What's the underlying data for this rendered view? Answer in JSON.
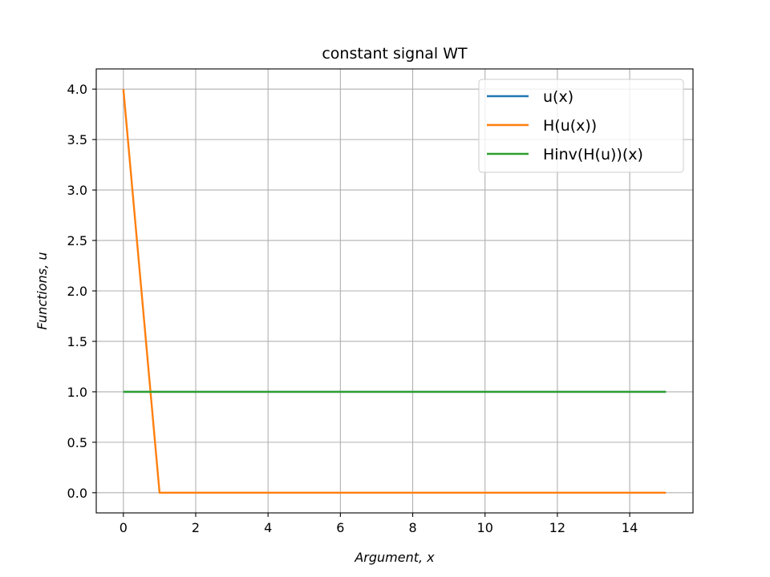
{
  "chart_data": {
    "type": "line",
    "title": "constant signal WT",
    "xlabel": "Argument, x",
    "ylabel": "Functions, u",
    "xlim": [
      -0.75,
      15.75
    ],
    "ylim": [
      -0.2,
      4.2
    ],
    "xticks": [
      0,
      2,
      4,
      6,
      8,
      10,
      12,
      14
    ],
    "xtick_labels": [
      "0",
      "2",
      "4",
      "6",
      "8",
      "10",
      "12",
      "14"
    ],
    "yticks": [
      0.0,
      0.5,
      1.0,
      1.5,
      2.0,
      2.5,
      3.0,
      3.5,
      4.0
    ],
    "ytick_labels": [
      "0.0",
      "0.5",
      "1.0",
      "1.5",
      "2.0",
      "2.5",
      "3.0",
      "3.5",
      "4.0"
    ],
    "grid": true,
    "legend_position": "top-right",
    "series": [
      {
        "name": "u(x)",
        "color": "#1f77b4",
        "x": [
          0,
          1,
          2,
          3,
          4,
          5,
          6,
          7,
          8,
          9,
          10,
          11,
          12,
          13,
          14,
          15
        ],
        "y": [
          1,
          1,
          1,
          1,
          1,
          1,
          1,
          1,
          1,
          1,
          1,
          1,
          1,
          1,
          1,
          1
        ]
      },
      {
        "name": "H(u(x))",
        "color": "#ff7f0e",
        "x": [
          0,
          1,
          2,
          3,
          4,
          5,
          6,
          7,
          8,
          9,
          10,
          11,
          12,
          13,
          14,
          15
        ],
        "y": [
          4,
          0,
          0,
          0,
          0,
          0,
          0,
          0,
          0,
          0,
          0,
          0,
          0,
          0,
          0,
          0
        ]
      },
      {
        "name": "Hinv(H(u))(x)",
        "color": "#2ca02c",
        "x": [
          0,
          1,
          2,
          3,
          4,
          5,
          6,
          7,
          8,
          9,
          10,
          11,
          12,
          13,
          14,
          15
        ],
        "y": [
          1,
          1,
          1,
          1,
          1,
          1,
          1,
          1,
          1,
          1,
          1,
          1,
          1,
          1,
          1,
          1
        ]
      }
    ]
  }
}
